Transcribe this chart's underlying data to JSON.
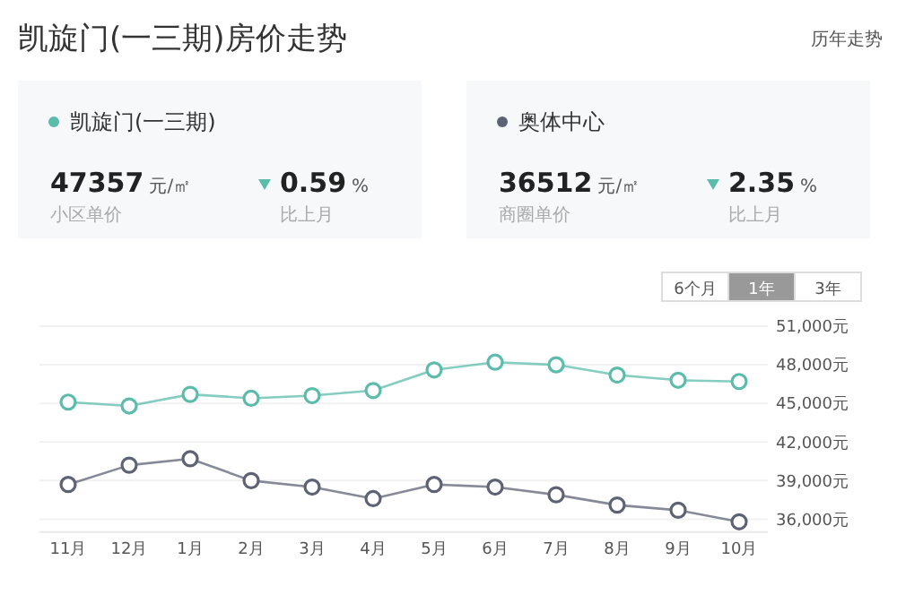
{
  "chart_data": {
    "type": "line",
    "title": "凯旋门(一三期)房价走势",
    "categories": [
      "11月",
      "12月",
      "1月",
      "2月",
      "3月",
      "4月",
      "5月",
      "6月",
      "7月",
      "8月",
      "9月",
      "10月"
    ],
    "series": [
      {
        "name": "凯旋门(一三期)",
        "color": "#5bbcab",
        "values": [
          45100,
          44800,
          45700,
          45400,
          45600,
          46000,
          47600,
          48200,
          48000,
          47200,
          46800,
          46700
        ]
      },
      {
        "name": "奥体中心",
        "color": "#5d6275",
        "values": [
          38700,
          40200,
          40700,
          39000,
          38500,
          37600,
          38700,
          38500,
          37900,
          37100,
          36700,
          35800
        ]
      }
    ],
    "ylim": [
      35000,
      51000
    ],
    "yticks": [
      {
        "value": 36000,
        "label": "36,000元"
      },
      {
        "value": 39000,
        "label": "39,000元"
      },
      {
        "value": 42000,
        "label": "42,000元"
      },
      {
        "value": 45000,
        "label": "45,000元"
      },
      {
        "value": 48000,
        "label": "48,000元"
      },
      {
        "value": 51000,
        "label": "51,000元"
      }
    ],
    "grid": "y",
    "marker": "circle",
    "legend": "top",
    "annotations": [
      "历年走势",
      "47357 元/㎡",
      "小区单价",
      "0.59 %",
      "比上月",
      "36512 元/㎡",
      "商圈单价",
      "2.35 %",
      "比上月",
      "6个月",
      "1年",
      "3年"
    ]
  }
}
